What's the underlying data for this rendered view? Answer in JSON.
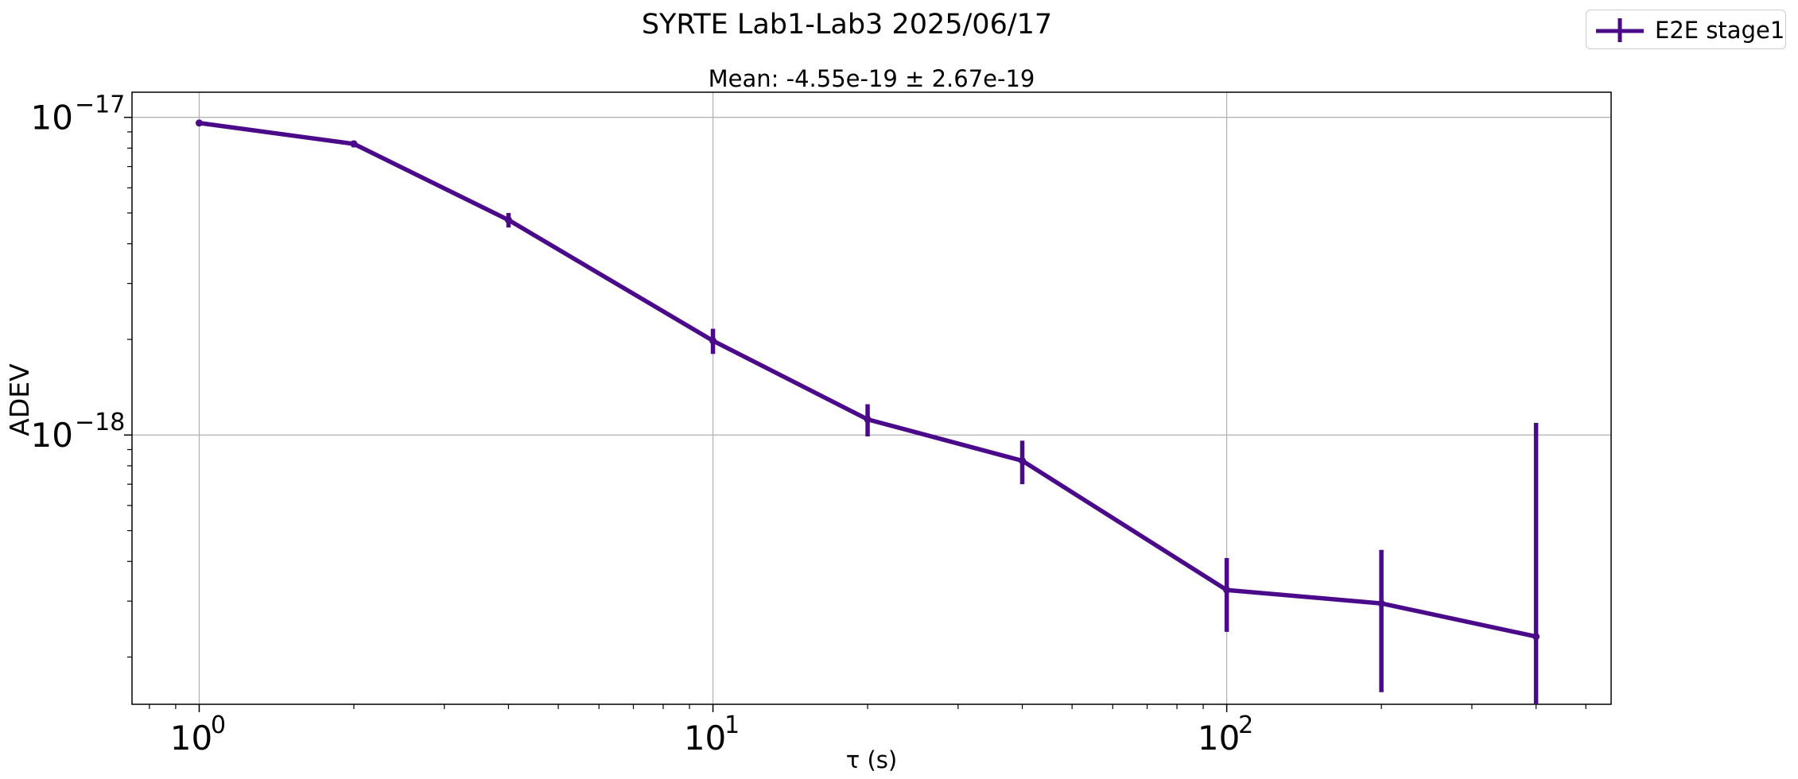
{
  "chart_data": {
    "type": "line",
    "title": "SYRTE Lab1-Lab3 2025/06/17",
    "subtitle": "Mean: -4.55e-19 ± 2.67e-19",
    "xlabel": "τ (s)",
    "ylabel": "ADEV",
    "xscale": "log",
    "yscale": "log",
    "xlim": [
      0.74,
      560
    ],
    "ylim": [
      1.42e-19,
      1.2e-17
    ],
    "grid": true,
    "legend_position": "top-right",
    "x_ticks": [
      {
        "value": 1,
        "base": "10",
        "exp": "0"
      },
      {
        "value": 10,
        "base": "10",
        "exp": "1"
      },
      {
        "value": 100,
        "base": "10",
        "exp": "2"
      }
    ],
    "y_ticks": [
      {
        "value": 1e-17,
        "base": "10",
        "exp": "−17"
      },
      {
        "value": 1e-18,
        "base": "10",
        "exp": "−18"
      }
    ],
    "series": [
      {
        "name": "E2E stage1",
        "color": "#4b0a8a",
        "x": [
          1,
          2,
          4,
          10,
          20,
          40,
          100,
          200,
          400
        ],
        "y": [
          9.6e-18,
          8.25e-18,
          4.75e-18,
          1.98e-18,
          1.12e-18,
          8.3e-19,
          3.25e-19,
          2.95e-19,
          2.32e-19
        ],
        "err": [
          0,
          2e-19,
          2.5e-19,
          1.8e-19,
          1.3e-19,
          1.3e-19,
          8.5e-20,
          1.4e-19,
          8.6e-19
        ]
      }
    ]
  }
}
